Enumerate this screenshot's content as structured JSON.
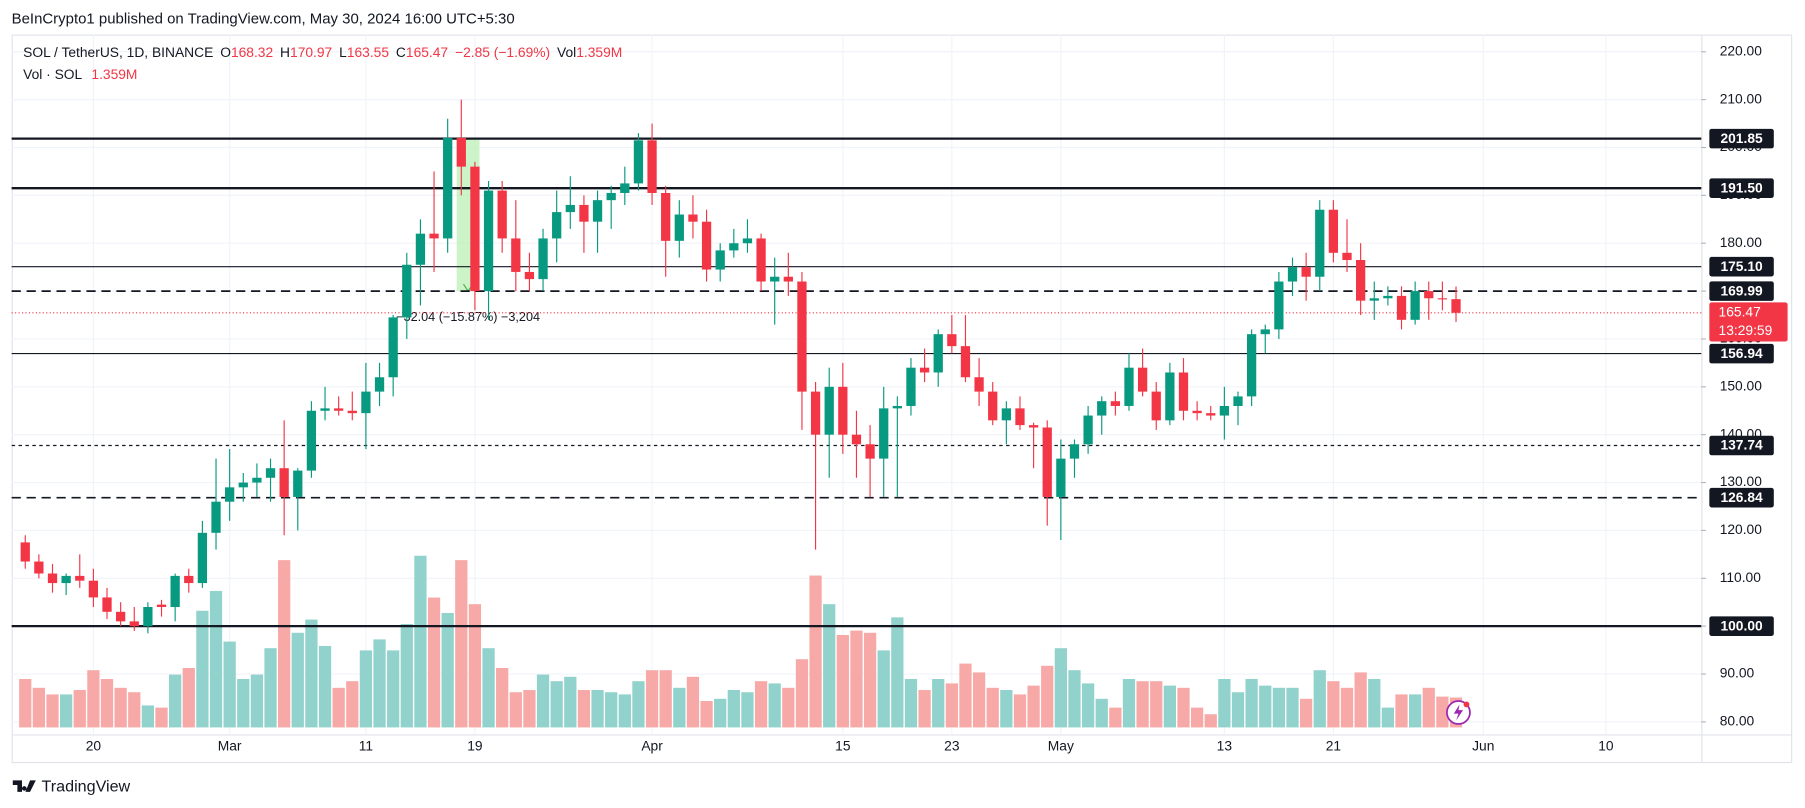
{
  "header": {
    "publisher": "BeInCrypto1 published on TradingView.com, May 30, 2024 16:00 UTC+5:30"
  },
  "footer": {
    "brand": "TradingView"
  },
  "chart_data": {
    "type": "candlestick",
    "symbol": "SOL / TetherUS, 1D, BINANCE",
    "ohlc_labels": [
      "O",
      "H",
      "L",
      "C"
    ],
    "change_label": "−2.85 (−1.69%)",
    "volume_title": "Vol",
    "volume_series_title": "Vol · SOL",
    "last_volume_label": "1.359M",
    "x": [
      "2024-02-15",
      "2024-02-16",
      "2024-02-17",
      "2024-02-18",
      "2024-02-19",
      "2024-02-20",
      "2024-02-21",
      "2024-02-22",
      "2024-02-23",
      "2024-02-24",
      "2024-02-25",
      "2024-02-26",
      "2024-02-27",
      "2024-02-28",
      "2024-02-29",
      "2024-03-01",
      "2024-03-02",
      "2024-03-03",
      "2024-03-04",
      "2024-03-05",
      "2024-03-06",
      "2024-03-07",
      "2024-03-08",
      "2024-03-09",
      "2024-03-10",
      "2024-03-11",
      "2024-03-12",
      "2024-03-13",
      "2024-03-14",
      "2024-03-15",
      "2024-03-16",
      "2024-03-17",
      "2024-03-18",
      "2024-03-19",
      "2024-03-20",
      "2024-03-21",
      "2024-03-22",
      "2024-03-23",
      "2024-03-24",
      "2024-03-25",
      "2024-03-26",
      "2024-03-27",
      "2024-03-28",
      "2024-03-29",
      "2024-03-30",
      "2024-03-31",
      "2024-04-01",
      "2024-04-02",
      "2024-04-03",
      "2024-04-04",
      "2024-04-05",
      "2024-04-06",
      "2024-04-07",
      "2024-04-08",
      "2024-04-09",
      "2024-04-10",
      "2024-04-11",
      "2024-04-12",
      "2024-04-13",
      "2024-04-14",
      "2024-04-15",
      "2024-04-16",
      "2024-04-17",
      "2024-04-18",
      "2024-04-19",
      "2024-04-20",
      "2024-04-21",
      "2024-04-22",
      "2024-04-23",
      "2024-04-24",
      "2024-04-25",
      "2024-04-26",
      "2024-04-27",
      "2024-04-28",
      "2024-04-29",
      "2024-04-30",
      "2024-05-01",
      "2024-05-02",
      "2024-05-03",
      "2024-05-04",
      "2024-05-05",
      "2024-05-06",
      "2024-05-07",
      "2024-05-08",
      "2024-05-09",
      "2024-05-10",
      "2024-05-11",
      "2024-05-12",
      "2024-05-13",
      "2024-05-14",
      "2024-05-15",
      "2024-05-16",
      "2024-05-17",
      "2024-05-18",
      "2024-05-19",
      "2024-05-20",
      "2024-05-21",
      "2024-05-22",
      "2024-05-23",
      "2024-05-24",
      "2024-05-25",
      "2024-05-26",
      "2024-05-27",
      "2024-05-28",
      "2024-05-29",
      "2024-05-30"
    ],
    "open": [
      117.5,
      113.5,
      111,
      109,
      110.5,
      109.5,
      106,
      103,
      101,
      100,
      104.5,
      104,
      110.5,
      109,
      119.5,
      126,
      129,
      130,
      131,
      133,
      127,
      132.5,
      145,
      145.5,
      145,
      144.5,
      149,
      152,
      164.5,
      175.5,
      182,
      181,
      202,
      196,
      170,
      191,
      181,
      174,
      172.5,
      181,
      186.5,
      188,
      184.5,
      189,
      190.5,
      192.5,
      201.5,
      190.5,
      180.5,
      186,
      184.5,
      174.5,
      178.5,
      180,
      181,
      172,
      173,
      172,
      149,
      140,
      150,
      140,
      138,
      135,
      145.5,
      146,
      154,
      153,
      161,
      158.5,
      152,
      149,
      143,
      145.5,
      142,
      141.5,
      127,
      135,
      138,
      144,
      147,
      146,
      154,
      149,
      143,
      153,
      145,
      144.5,
      144,
      146,
      148,
      161,
      162,
      172,
      175,
      173,
      187,
      178,
      176.5,
      168,
      168.5,
      169,
      164,
      170,
      168.5,
      168.32
    ],
    "high": [
      119,
      115,
      113,
      111,
      115,
      112,
      108,
      105,
      104,
      105,
      105.5,
      111,
      112,
      122,
      135,
      137,
      132,
      134,
      135,
      143,
      133,
      147,
      150,
      148,
      149,
      155,
      155,
      165,
      178,
      185,
      195,
      206,
      210,
      197,
      193,
      193,
      189,
      178,
      183,
      191,
      194,
      190,
      191,
      192,
      196,
      203,
      205,
      192,
      189,
      190,
      187,
      180,
      183,
      185,
      182,
      177,
      178,
      174,
      151,
      154,
      155,
      145,
      142,
      150,
      148,
      156,
      158,
      162,
      165,
      165,
      156,
      151,
      147,
      148,
      142.5,
      143,
      139,
      139,
      146,
      148,
      149,
      157,
      158,
      151,
      155,
      156,
      147,
      146,
      150,
      149,
      162,
      163,
      174,
      177,
      178,
      189,
      189,
      185,
      180,
      172,
      171,
      171,
      172,
      172,
      172,
      170.97
    ],
    "low": [
      112,
      110,
      107,
      106.5,
      108,
      104,
      101.5,
      100,
      99,
      98.5,
      102,
      101,
      107,
      108,
      116,
      122,
      126,
      127,
      126,
      119,
      120,
      131,
      143,
      144,
      143,
      137,
      146,
      148,
      160,
      167,
      174,
      178,
      190,
      166,
      164,
      178,
      170,
      170,
      170,
      176,
      183,
      178,
      178,
      183,
      188,
      191,
      188,
      173,
      177,
      181,
      172,
      172,
      177,
      178,
      170,
      163,
      169,
      141,
      116,
      131,
      136,
      131,
      127,
      127,
      127,
      144,
      151,
      150,
      157,
      151,
      146,
      142,
      138,
      141,
      133,
      121,
      118,
      131,
      136,
      140,
      144,
      145,
      148,
      141,
      142,
      143,
      143,
      143,
      139,
      142,
      146,
      157,
      160,
      169,
      168,
      170,
      176,
      174,
      165,
      164,
      167,
      162,
      163,
      164,
      166,
      163.55
    ],
    "close": [
      113.5,
      111,
      109,
      110.5,
      109.5,
      106,
      103,
      101,
      100,
      104,
      104,
      110.5,
      109,
      119.5,
      126,
      129,
      130,
      131,
      133,
      127,
      132.5,
      145,
      145.5,
      145,
      144.5,
      149,
      152,
      164.5,
      175.5,
      182,
      181,
      202,
      196,
      170,
      191,
      181,
      174,
      172.5,
      181,
      186.5,
      188,
      184.5,
      189,
      190.5,
      192.5,
      201.5,
      190.5,
      180.5,
      186,
      184.5,
      174.5,
      178.5,
      180,
      181,
      172,
      173,
      172,
      149,
      140,
      150,
      140,
      138,
      135,
      145.5,
      146,
      154,
      153,
      161,
      158.5,
      152,
      149,
      143,
      145.5,
      142,
      141.5,
      127,
      135,
      138,
      144,
      147,
      146,
      154,
      149,
      143,
      153,
      145,
      144.5,
      144,
      146,
      148,
      161,
      162,
      172,
      175,
      173,
      187,
      178,
      176.5,
      168,
      168.5,
      169,
      164,
      170,
      168.5,
      168.3,
      165.47
    ],
    "volume": [
      2.2,
      1.8,
      1.5,
      1.5,
      1.7,
      2.6,
      2.2,
      1.8,
      1.6,
      1.0,
      0.9,
      2.4,
      2.7,
      5.3,
      6.2,
      3.9,
      2.2,
      2.4,
      3.6,
      7.6,
      4.3,
      4.9,
      3.7,
      1.8,
      2.1,
      3.5,
      4.0,
      3.5,
      4.7,
      7.8,
      5.9,
      5.2,
      7.6,
      5.6,
      3.6,
      2.7,
      1.6,
      1.7,
      2.4,
      2.1,
      2.3,
      1.7,
      1.7,
      1.6,
      1.5,
      2.1,
      2.6,
      2.6,
      1.8,
      2.3,
      1.2,
      1.3,
      1.7,
      1.6,
      2.1,
      2.0,
      1.8,
      3.1,
      6.9,
      5.6,
      4.2,
      4.4,
      4.3,
      3.5,
      5.0,
      2.2,
      1.7,
      2.2,
      2.0,
      2.9,
      2.5,
      1.8,
      1.7,
      1.5,
      1.9,
      2.8,
      3.6,
      2.6,
      2.0,
      1.3,
      0.9,
      2.2,
      2.1,
      2.1,
      1.9,
      1.8,
      0.9,
      0.6,
      2.2,
      1.6,
      2.2,
      1.9,
      1.8,
      1.8,
      1.3,
      2.6,
      2.1,
      1.8,
      2.5,
      2.2,
      0.9,
      1.5,
      1.5,
      1.8,
      1.4,
      1.359
    ],
    "colors": {
      "up": "#089981",
      "down": "#f23645",
      "volume_up": "#92d2cc",
      "volume_down": "#f7a9a7",
      "measure": "#b7f0b0"
    },
    "xlim": [
      "2024-02-14",
      "2024-06-17"
    ],
    "xticks": [
      {
        "value": "2024-02-20",
        "label": "20"
      },
      {
        "value": "2024-03-01",
        "label": "Mar"
      },
      {
        "value": "2024-03-11",
        "label": "11"
      },
      {
        "value": "2024-03-19",
        "label": "19"
      },
      {
        "value": "2024-04-01",
        "label": "Apr"
      },
      {
        "value": "2024-04-15",
        "label": "15"
      },
      {
        "value": "2024-04-23",
        "label": "23"
      },
      {
        "value": "2024-05-01",
        "label": "May"
      },
      {
        "value": "2024-05-13",
        "label": "13"
      },
      {
        "value": "2024-05-21",
        "label": "21"
      },
      {
        "value": "2024-06-01",
        "label": "Jun"
      },
      {
        "value": "2024-06-10",
        "label": "10"
      }
    ],
    "ylim": [
      77.4,
      223.6
    ],
    "yticks": [
      {
        "value": 80,
        "label": "80.00"
      },
      {
        "value": 90,
        "label": "90.00"
      },
      {
        "value": 100,
        "label": "100.00"
      },
      {
        "value": 110,
        "label": "110.00"
      },
      {
        "value": 120,
        "label": "120.00"
      },
      {
        "value": 130,
        "label": "130.00"
      },
      {
        "value": 140,
        "label": "140.00"
      },
      {
        "value": 150,
        "label": "150.00"
      },
      {
        "value": 160,
        "label": "160.00"
      },
      {
        "value": 170,
        "label": "170.00"
      },
      {
        "value": 180,
        "label": "180.00"
      },
      {
        "value": 190,
        "label": "190.00"
      },
      {
        "value": 200,
        "label": "200.00"
      },
      {
        "value": 210,
        "label": "210.00"
      },
      {
        "value": 220,
        "label": "220.00"
      }
    ],
    "volume_ylim": [
      0,
      8
    ],
    "levels": [
      {
        "value": 201.85,
        "label": "201.85",
        "style": "solid"
      },
      {
        "value": 191.5,
        "label": "191.50",
        "style": "solid"
      },
      {
        "value": 175.1,
        "label": "175.10",
        "style": "thin"
      },
      {
        "value": 169.99,
        "label": "169.99",
        "style": "dashed"
      },
      {
        "value": 156.94,
        "label": "156.94",
        "style": "thin"
      },
      {
        "value": 137.74,
        "label": "137.74",
        "style": "dotted"
      },
      {
        "value": 126.84,
        "label": "126.84",
        "style": "dashed"
      },
      {
        "value": 100,
        "label": "100.00",
        "style": "solid"
      }
    ],
    "countdown": "13:29:59",
    "measure": {
      "from": "2024-03-18",
      "to": "2024-03-19",
      "top": 202.04,
      "bottom": 170,
      "label": "−32.04 (−15.87%) −3,204"
    },
    "grid": true
  }
}
